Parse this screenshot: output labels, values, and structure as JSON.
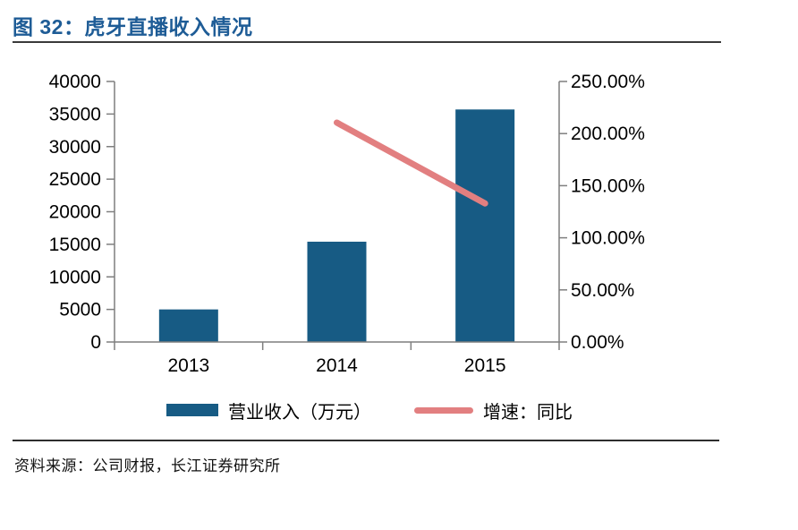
{
  "header": {
    "title": "图 32：虎牙直播收入情况"
  },
  "footer": {
    "source": "资料来源：公司财报，长江证券研究所"
  },
  "legend": [
    {
      "type": "bar",
      "label": "营业收入（万元）",
      "color": "#175B84"
    },
    {
      "type": "line",
      "label": "增速：同比",
      "color": "#E27F80"
    }
  ],
  "colors": {
    "title": "#1E5C96",
    "bar": "#175B84",
    "growth_line": "#E27F80",
    "axis": "#7F7F7F",
    "text": "#000000"
  },
  "chart_data": {
    "type": "bar",
    "subtype": "bar + line combo, dual axis",
    "title": "虎牙直播收入情况",
    "categories": [
      "2013",
      "2014",
      "2015"
    ],
    "series": [
      {
        "name": "营业收入（万元）",
        "type": "bar",
        "axis": "left",
        "color": "#175B84",
        "values": [
          5000,
          15400,
          35700
        ]
      },
      {
        "name": "增速：同比",
        "type": "line",
        "axis": "right",
        "color": "#E27F80",
        "values": [
          null,
          210.5,
          133
        ]
      }
    ],
    "left_axis": {
      "min": 0,
      "max": 40000,
      "step": 5000,
      "ticks": [
        "0",
        "5000",
        "10000",
        "15000",
        "20000",
        "25000",
        "30000",
        "35000",
        "40000"
      ]
    },
    "right_axis": {
      "min": 0,
      "max": 250,
      "step": 50,
      "ticks": [
        "0.00%",
        "50.00%",
        "100.00%",
        "150.00%",
        "200.00%",
        "250.00%"
      ]
    },
    "grid": false,
    "legend_position": "bottom"
  }
}
